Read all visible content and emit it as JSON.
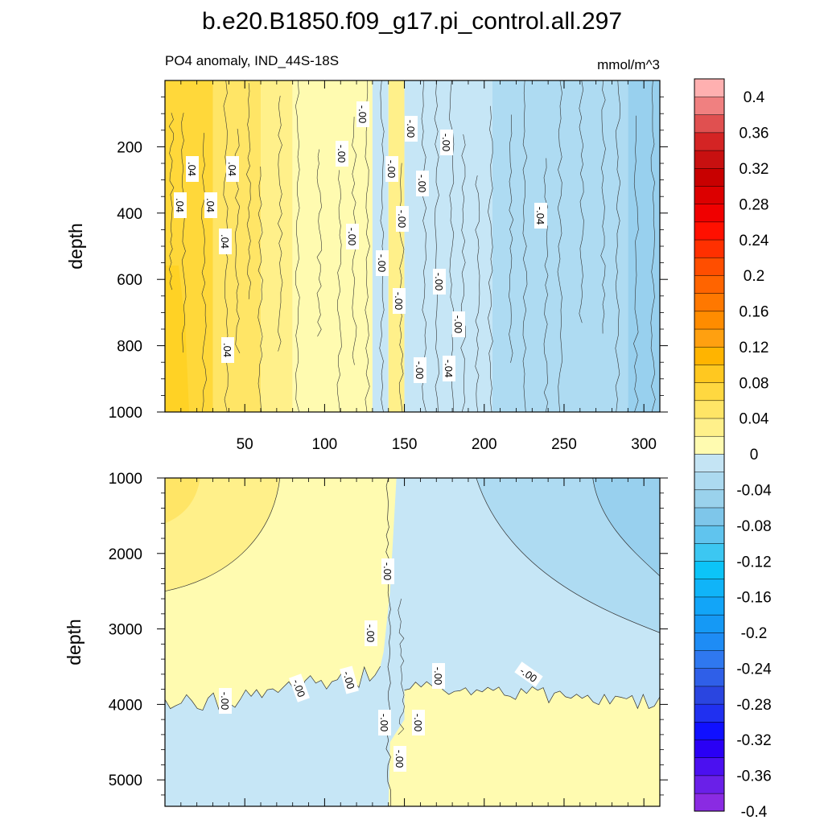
{
  "chart_data": {
    "type": "heatmap",
    "title": "b.e20.B1850.f09_g17.pi_control.all.297",
    "subtitle": "PO4 anomaly, IND_44S-18S",
    "units": "mmol/m^3",
    "ylabel": "depth",
    "x_range": [
      0,
      310
    ],
    "x_ticks": [
      "50",
      "100",
      "150",
      "200",
      "250",
      "300"
    ],
    "panels": [
      {
        "name": "upper",
        "y_range": [
          0,
          1000
        ],
        "y_ticks": [
          "200",
          "400",
          "600",
          "800",
          "1000"
        ],
        "contour_labels": [
          ".04",
          ".04",
          ".04",
          ".04",
          ".04",
          ".04",
          "-.00",
          "-.00",
          "-.00",
          "-.00",
          "-.00",
          "-.00",
          "-.00",
          "-.00",
          "-.00",
          "-.00",
          "-.00",
          "-.00",
          "-.00",
          "-.04",
          "-.04"
        ]
      },
      {
        "name": "lower",
        "y_range": [
          1000,
          5350
        ],
        "y_ticks": [
          "1000",
          "2000",
          "3000",
          "4000",
          "5000"
        ],
        "contour_labels": [
          "-.00",
          "-.00",
          "-.00",
          "-.00",
          "-.00",
          "-.00",
          "-.00",
          "-.00",
          "-.00",
          "-.00"
        ]
      }
    ],
    "colorbar": {
      "levels": [
        -0.4,
        -0.38,
        -0.36,
        -0.34,
        -0.32,
        -0.3,
        -0.28,
        -0.26,
        -0.24,
        -0.22,
        -0.2,
        -0.18,
        -0.16,
        -0.14,
        -0.12,
        -0.1,
        -0.08,
        -0.06,
        -0.04,
        -0.02,
        0,
        0.02,
        0.04,
        0.06,
        0.08,
        0.1,
        0.12,
        0.14,
        0.16,
        0.18,
        0.2,
        0.22,
        0.24,
        0.26,
        0.28,
        0.3,
        0.32,
        0.34,
        0.36,
        0.38,
        0.4
      ],
      "tick_labels": [
        "0.4",
        "0.36",
        "0.32",
        "0.28",
        "0.24",
        "0.2",
        "0.16",
        "0.12",
        "0.08",
        "0.04",
        "0",
        "-0.04",
        "-0.08",
        "-0.12",
        "-0.16",
        "-0.2",
        "-0.24",
        "-0.28",
        "-0.32",
        "-0.36",
        "-0.4"
      ],
      "colors": [
        "#8a2be2",
        "#6a20e8",
        "#4b10f0",
        "#2a00f5",
        "#1010ff",
        "#2030f0",
        "#2a45e0",
        "#2f5fe8",
        "#2f78f0",
        "#1e8cf5",
        "#1599f5",
        "#12a5f8",
        "#10b4f8",
        "#0cc4f8",
        "#3cc7f2",
        "#60c4ee",
        "#7ec6ea",
        "#9ad2ec",
        "#acdaf0",
        "#c4e4f4",
        "#fffbb0",
        "#fff08a",
        "#ffe566",
        "#ffd840",
        "#ffc820",
        "#ffb400",
        "#ffa010",
        "#ff8c00",
        "#ff7800",
        "#ff6400",
        "#ff4e00",
        "#ff3000",
        "#ff1000",
        "#f00000",
        "#dc0000",
        "#c80000",
        "#c81010",
        "#d42424",
        "#e05050",
        "#f08080",
        "#ffb0b0"
      ]
    }
  },
  "colors": {
    "yellow_strong": "#ffd83a",
    "yellow_mid": "#ffe566",
    "yellow_light": "#fff08a",
    "yellow_pale": "#fffbb0",
    "blue_pale": "#c6e6f6",
    "blue_mid": "#aedbf2",
    "blue_deep": "#98d0ee",
    "contour": "#333333"
  }
}
